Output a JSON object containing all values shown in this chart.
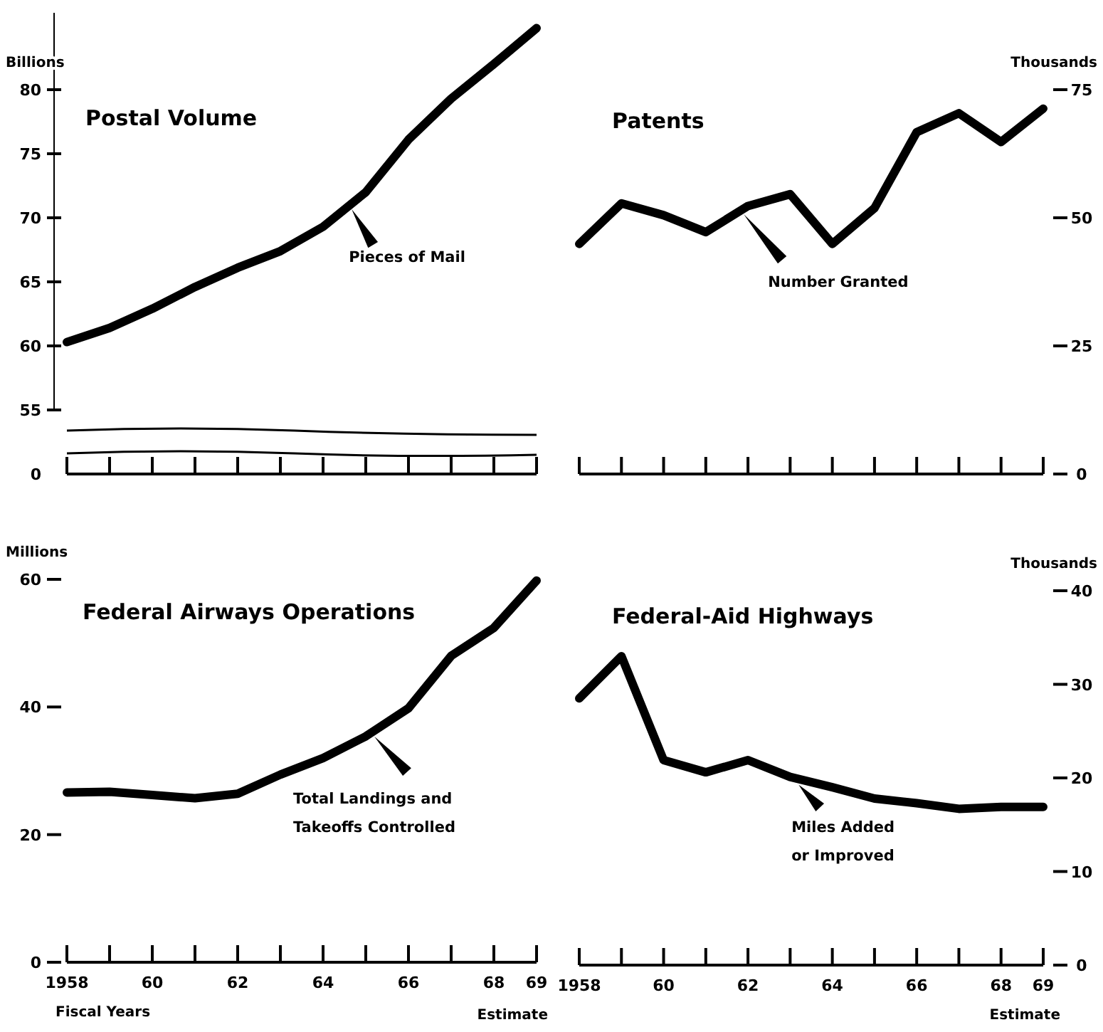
{
  "chart_data": [
    {
      "type": "line",
      "title": "Postal Volume",
      "ylabel": "Billions",
      "annotations": [
        "0"
      ],
      "categories": [
        null,
        null,
        null,
        null,
        null,
        null,
        null,
        null,
        null,
        null,
        null,
        null
      ],
      "ylim": [
        55,
        86
      ],
      "yticks": [
        55,
        60,
        65,
        70,
        75,
        80
      ],
      "series": [
        {
          "name": "Pieces of Mail",
          "color": "#000000",
          "values": [
            60.3,
            61.4,
            62.9,
            64.6,
            66.1,
            67.4,
            69.3,
            72.0,
            76.1,
            79.3,
            82.0,
            84.8
          ]
        }
      ]
    },
    {
      "type": "line",
      "title": "Patents",
      "ylabel": "Thousands",
      "categories": [
        null,
        null,
        null,
        null,
        null,
        null,
        null,
        null,
        null,
        null,
        null,
        null
      ],
      "ylim": [
        0,
        75
      ],
      "yticks": [
        0,
        25,
        50,
        75
      ],
      "series": [
        {
          "name": "Number Granted",
          "color": "#000000",
          "values": [
            44.9,
            52.8,
            50.5,
            47.2,
            52.3,
            54.6,
            44.9,
            51.9,
            66.7,
            70.4,
            64.8,
            71.3
          ]
        }
      ]
    },
    {
      "type": "line",
      "title": "Federal Airways Operations",
      "ylabel": "Millions",
      "xlabel": "Fiscal Years",
      "annotations": [
        "Estimate"
      ],
      "x": [
        1958,
        1959,
        1960,
        1961,
        1962,
        1963,
        1964,
        1965,
        1966,
        1967,
        1968,
        1969
      ],
      "xlim": [
        1958,
        1969
      ],
      "xticks": [
        {
          "value": 1958,
          "label": "1958"
        },
        {
          "value": 1959,
          "label": null
        },
        {
          "value": 1960,
          "label": "60"
        },
        {
          "value": 1961,
          "label": null
        },
        {
          "value": 1962,
          "label": "62"
        },
        {
          "value": 1963,
          "label": null
        },
        {
          "value": 1964,
          "label": "64"
        },
        {
          "value": 1965,
          "label": null
        },
        {
          "value": 1966,
          "label": "66"
        },
        {
          "value": 1967,
          "label": null
        },
        {
          "value": 1968,
          "label": "68"
        },
        {
          "value": 1969,
          "label": "69"
        }
      ],
      "ylim": [
        0,
        60
      ],
      "yticks": [
        0,
        20,
        40,
        60
      ],
      "series": [
        {
          "name": "Total Landings and\nTakeoffs Controlled",
          "color": "#000000",
          "values": [
            26.6,
            26.7,
            26.2,
            25.7,
            26.4,
            29.4,
            32.0,
            35.4,
            39.8,
            48.0,
            52.4,
            59.8
          ]
        }
      ]
    },
    {
      "type": "line",
      "title": "Federal-Aid Highways",
      "y2label": "Thousands",
      "annotations": [
        "Estimate"
      ],
      "x": [
        1958,
        1959,
        1960,
        1961,
        1962,
        1963,
        1964,
        1965,
        1966,
        1967,
        1968,
        1969
      ],
      "xlim": [
        1958,
        1969
      ],
      "xticks": [
        {
          "value": 1958,
          "label": "1958"
        },
        {
          "value": 1959,
          "label": null
        },
        {
          "value": 1960,
          "label": "60"
        },
        {
          "value": 1961,
          "label": null
        },
        {
          "value": 1962,
          "label": "62"
        },
        {
          "value": 1963,
          "label": null
        },
        {
          "value": 1964,
          "label": "64"
        },
        {
          "value": 1965,
          "label": null
        },
        {
          "value": 1966,
          "label": "66"
        },
        {
          "value": 1967,
          "label": null
        },
        {
          "value": 1968,
          "label": "68"
        },
        {
          "value": 1969,
          "label": "69"
        }
      ],
      "y2lim": [
        0,
        40
      ],
      "y2ticks": [
        0,
        10,
        20,
        30,
        40
      ],
      "series": [
        {
          "name": "Miles Added\nor Improved",
          "color": "#000000",
          "axis": "y2",
          "values": [
            28.5,
            33.0,
            21.9,
            20.6,
            21.9,
            20.1,
            19.0,
            17.8,
            17.3,
            16.7,
            16.9,
            16.9
          ]
        }
      ]
    }
  ]
}
